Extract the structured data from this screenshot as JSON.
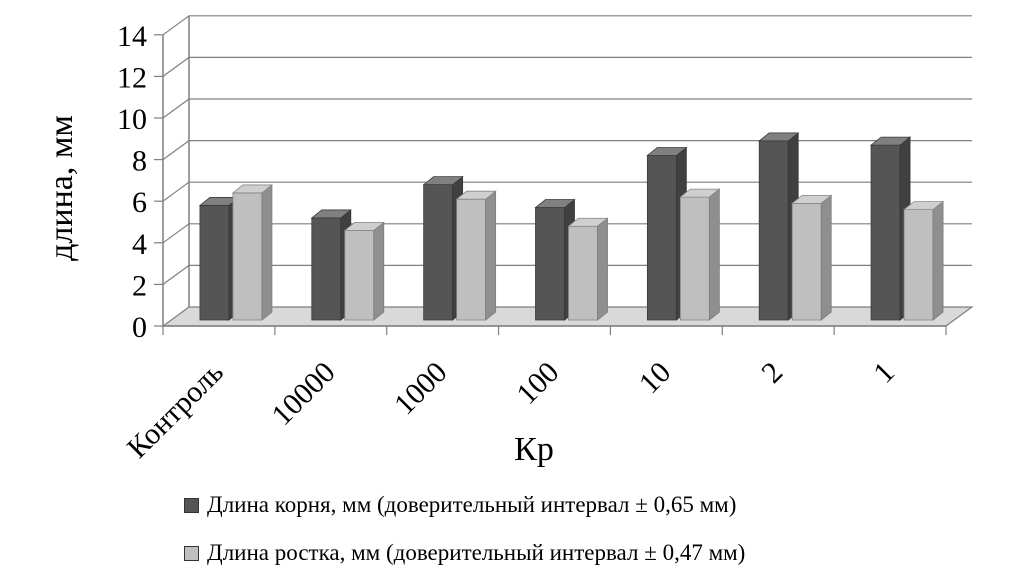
{
  "chart_data": {
    "type": "bar",
    "categories": [
      "Контроль",
      "10000",
      "1000",
      "100",
      "10",
      "2",
      "1"
    ],
    "series": [
      {
        "name": "Длина корня, мм (доверительный интервал ± 0,65 мм)",
        "values": [
          5.7,
          5.1,
          6.7,
          5.6,
          8.1,
          8.8,
          8.6
        ],
        "color": "#555555"
      },
      {
        "name": "Длина ростка, мм (доверительный интервал ± 0,47 мм)",
        "values": [
          6.3,
          4.5,
          6.0,
          4.7,
          6.1,
          5.8,
          5.5
        ],
        "color": "#bfbfbf"
      }
    ],
    "xlabel": "Кр",
    "ylabel": "длина,  мм",
    "ylim": [
      0,
      14
    ],
    "yticks": [
      "0",
      "2",
      "4",
      "6",
      "8",
      "10",
      "12",
      "14"
    ],
    "grid": true,
    "legend_position": "bottom",
    "style": "3d-clustered-column"
  }
}
